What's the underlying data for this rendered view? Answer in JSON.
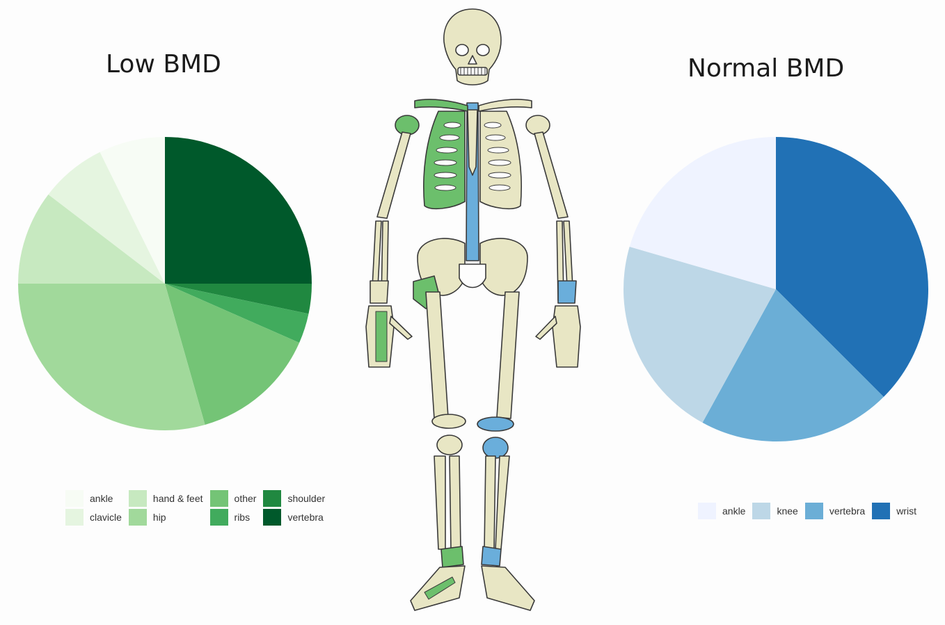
{
  "chart_data": [
    {
      "type": "pie",
      "title": "Low BMD",
      "start_angle_deg": 0,
      "direction": "clockwise",
      "slices": [
        {
          "label": "vertebra",
          "value": 25,
          "color": "#00592b"
        },
        {
          "label": "shoulder",
          "value": 3.3,
          "color": "#208840"
        },
        {
          "label": "ribs",
          "value": 3.3,
          "color": "#41ab5d"
        },
        {
          "label": "other",
          "value": 14,
          "color": "#74c476"
        },
        {
          "label": "hip",
          "value": 29.4,
          "color": "#a1d99b"
        },
        {
          "label": "hand & feet",
          "value": 10.4,
          "color": "#c7e9c0"
        },
        {
          "label": "clavicle",
          "value": 7.3,
          "color": "#e5f5e0"
        },
        {
          "label": "ankle",
          "value": 7.3,
          "color": "#f7fcf5"
        }
      ],
      "legend_order": [
        "ankle",
        "clavicle",
        "hand & feet",
        "hip",
        "other",
        "ribs",
        "shoulder",
        "vertebra"
      ],
      "legend_position": "bottom"
    },
    {
      "type": "pie",
      "title": "Normal BMD",
      "start_angle_deg": 0,
      "direction": "clockwise",
      "slices": [
        {
          "label": "wrist",
          "value": 37.5,
          "color": "#2171b5"
        },
        {
          "label": "vertebra",
          "value": 20.5,
          "color": "#6baed6"
        },
        {
          "label": "knee",
          "value": 21.5,
          "color": "#bdd7e7"
        },
        {
          "label": "ankle",
          "value": 20.5,
          "color": "#eff3ff"
        }
      ],
      "legend_order": [
        "ankle",
        "knee",
        "vertebra",
        "wrist"
      ],
      "legend_position": "bottom"
    }
  ],
  "skeleton": {
    "bone_color": "#e8e6c4",
    "outline_color": "#3a3a3a",
    "low_bmd_color": "#6cbf6c",
    "normal_bmd_color": "#6aaedb"
  }
}
